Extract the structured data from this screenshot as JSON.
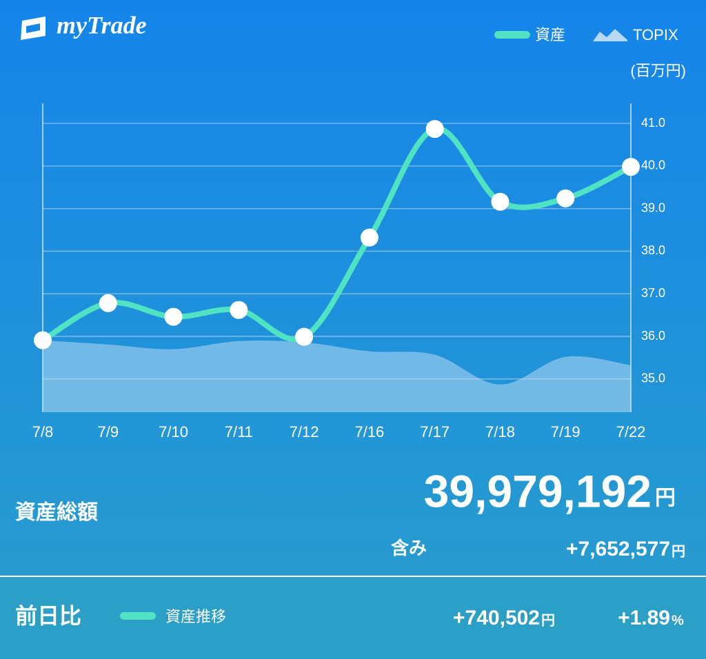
{
  "app_name": "myTrade",
  "chart_data": {
    "type": "line",
    "y_axis_label": "(百万円)",
    "categories": [
      "7/8",
      "7/9",
      "7/10",
      "7/11",
      "7/12",
      "7/16",
      "7/17",
      "7/18",
      "7/19",
      "7/22"
    ],
    "series": [
      {
        "name": "資産",
        "color": "#4fe3c3",
        "style": "line",
        "values": [
          35.91,
          36.78,
          36.46,
          36.62,
          35.99,
          38.32,
          40.87,
          39.16,
          39.24,
          39.98
        ]
      },
      {
        "name": "TOPIX",
        "color": "#b8d8f4",
        "style": "area",
        "values": [
          35.91,
          35.81,
          35.7,
          35.89,
          35.86,
          35.65,
          35.57,
          34.87,
          35.52,
          35.32
        ]
      }
    ],
    "ylim": [
      34.22,
      41.47
    ],
    "yticks": [
      {
        "value": 35,
        "label": "35.0"
      },
      {
        "value": 36,
        "label": "36.0"
      },
      {
        "value": 37,
        "label": "37.0"
      },
      {
        "value": 38,
        "label": "38.0"
      },
      {
        "value": 39,
        "label": "39.0"
      },
      {
        "value": 40,
        "label": "40.0"
      },
      {
        "value": 41,
        "label": "41.0"
      }
    ],
    "grid": true
  },
  "summary": {
    "total_label": "資産総額",
    "total_value": "39,979,192",
    "total_unit": "円",
    "unrealized_label": "含み",
    "unrealized_value": "+7,652,577",
    "unrealized_unit": "円",
    "daily_label": "前日比",
    "daily_legend": "資産推移",
    "daily_change": "+740,502",
    "daily_change_unit": "円",
    "daily_pct": "+1.89",
    "daily_pct_unit": "%"
  }
}
